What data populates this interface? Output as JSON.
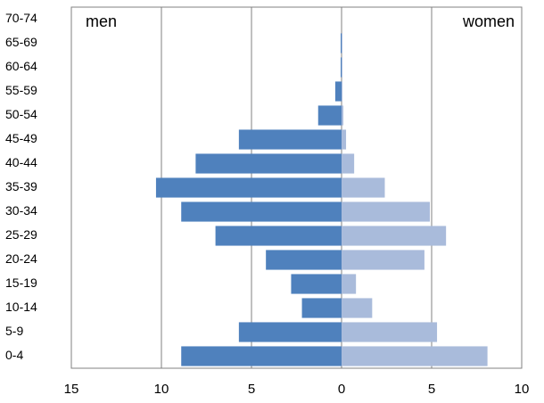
{
  "chart_data": {
    "type": "pyramid",
    "categories": [
      "0-4",
      "5-9",
      "10-14",
      "15-19",
      "20-24",
      "25-29",
      "30-34",
      "35-39",
      "40-44",
      "45-49",
      "50-54",
      "55-59",
      "60-64",
      "65-69",
      "70-74"
    ],
    "series": [
      {
        "name": "men",
        "color": "#4f81bd",
        "values": [
          -8.9,
          -5.7,
          -2.2,
          -2.8,
          -4.2,
          -7.0,
          -8.9,
          -10.3,
          -8.1,
          -5.7,
          -1.3,
          -0.35,
          -0.05,
          -0.05,
          0
        ]
      },
      {
        "name": "women",
        "color": "#a9bbdb",
        "values": [
          8.1,
          5.3,
          1.7,
          0.8,
          4.6,
          5.8,
          4.9,
          2.4,
          0.7,
          0.25,
          0.1,
          0.05,
          0.05,
          0.05,
          0
        ]
      }
    ],
    "xlim": [
      -15,
      10
    ],
    "xticks": [
      {
        "value": -15,
        "label": "15"
      },
      {
        "value": -10,
        "label": "10"
      },
      {
        "value": -5,
        "label": "5"
      },
      0,
      5,
      10
    ],
    "grid": true
  }
}
